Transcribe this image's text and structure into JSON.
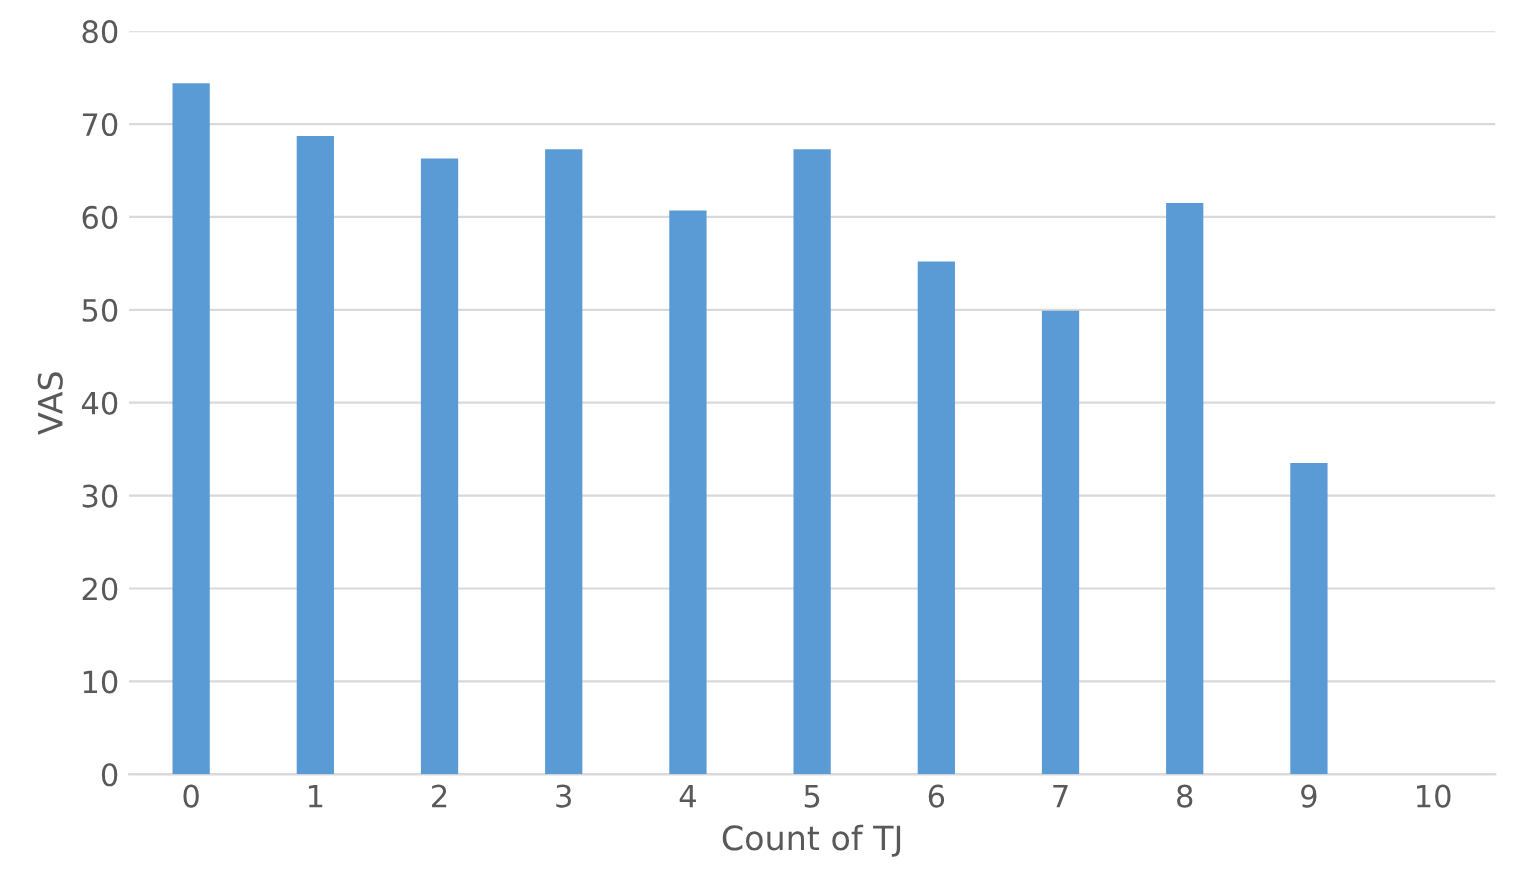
{
  "chart_data": {
    "type": "bar",
    "xlabel": "Count of TJ",
    "ylabel": "VAS",
    "categories": [
      "0",
      "1",
      "2",
      "3",
      "4",
      "5",
      "6",
      "7",
      "8",
      "9",
      "10"
    ],
    "values": [
      74.4,
      68.7,
      66.3,
      67.3,
      60.7,
      67.3,
      55.2,
      49.9,
      61.5,
      33.5,
      null
    ],
    "color": "#5b9bd5",
    "ylim": [
      0,
      80
    ],
    "yticks": [
      0,
      10,
      20,
      30,
      40,
      50,
      60,
      70,
      80
    ],
    "grid": "y",
    "legend": false
  }
}
